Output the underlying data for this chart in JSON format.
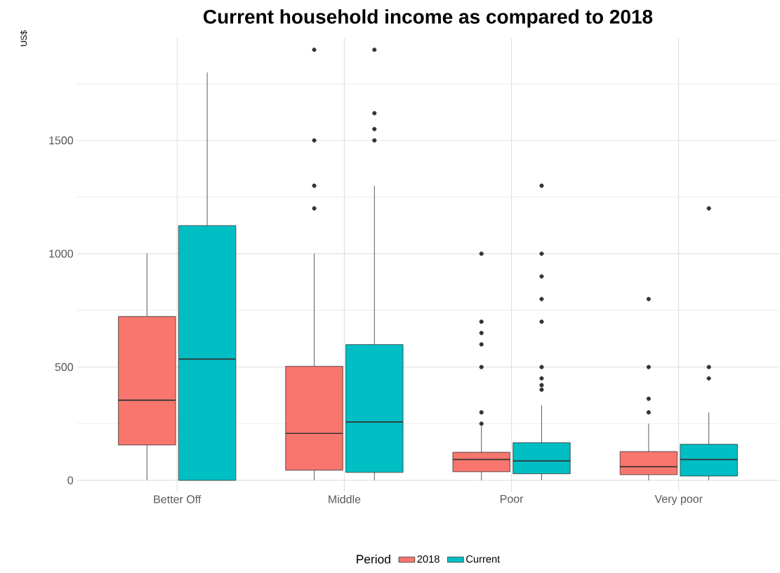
{
  "chart_data": {
    "type": "box",
    "title": "Current household income as compared to 2018",
    "ylabel": "US$",
    "legend_title": "Period",
    "legend": "bottom",
    "grid": true,
    "categories": [
      "Better Off",
      "Middle",
      "Poor",
      "Very poor"
    ],
    "ylim": [
      -50,
      1950
    ],
    "yticks": [
      0,
      500,
      1000,
      1500
    ],
    "series": [
      {
        "name": "2018",
        "color": "#f8766d",
        "boxes": [
          {
            "low": 0,
            "q1": 156,
            "median": 354,
            "q3": 723,
            "high": 1000
          },
          {
            "low": 0,
            "q1": 45,
            "median": 207,
            "q3": 503,
            "high": 1000,
            "outliers": [
              1200,
              1300,
              1500,
              1900
            ]
          },
          {
            "low": 0,
            "q1": 38,
            "median": 92,
            "q3": 124,
            "high": 239,
            "outliers": [
              250,
              300,
              500,
              600,
              650,
              700,
              1000
            ]
          },
          {
            "low": 0,
            "q1": 25,
            "median": 60,
            "q3": 127,
            "high": 250,
            "outliers": [
              300,
              360,
              500,
              800
            ]
          }
        ]
      },
      {
        "name": "Current",
        "color": "#00bfc4",
        "boxes": [
          {
            "low": 0,
            "q1": 0,
            "median": 535,
            "q3": 1124,
            "high": 1800
          },
          {
            "low": 0,
            "q1": 35,
            "median": 258,
            "q3": 599,
            "high": 1300,
            "outliers": [
              1500,
              1550,
              1620,
              1900
            ]
          },
          {
            "low": 0,
            "q1": 29,
            "median": 86,
            "q3": 166,
            "high": 331,
            "outliers": [
              400,
              420,
              450,
              500,
              700,
              800,
              900,
              1000,
              1300
            ]
          },
          {
            "low": 0,
            "q1": 19,
            "median": 92,
            "q3": 159,
            "high": 300,
            "outliers": [
              450,
              500,
              1200
            ]
          }
        ]
      }
    ]
  }
}
